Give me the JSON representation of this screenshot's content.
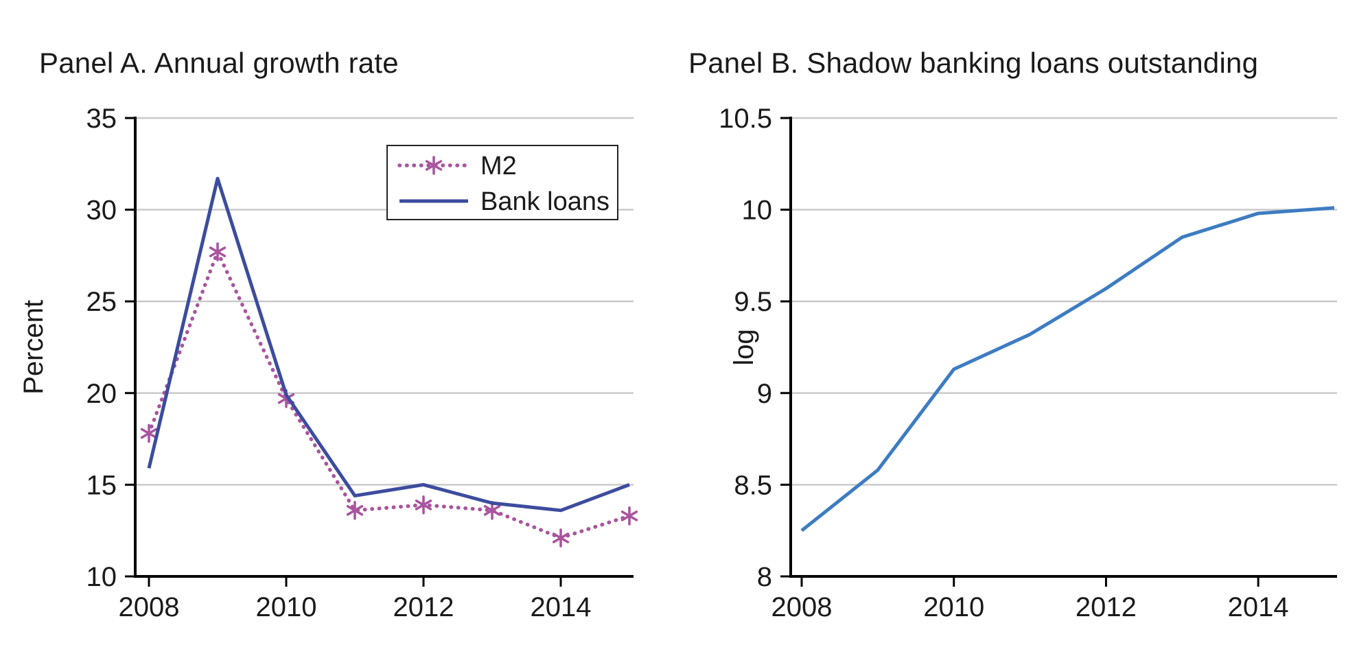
{
  "figure": {
    "background": "#ffffff",
    "grid_color": "#c8c8c8",
    "axis_color": "#000000",
    "text_color": "#1a1a1a",
    "legend_border_color": "#222222"
  },
  "chart_data": [
    {
      "type": "line",
      "title": "Panel A. Annual growth rate",
      "xlabel": "",
      "ylabel": "Percent",
      "x": [
        2008,
        2009,
        2010,
        2011,
        2012,
        2013,
        2014,
        2015
      ],
      "xlim": [
        2008,
        2015
      ],
      "ylim": [
        10,
        35
      ],
      "xticks": [
        2008,
        2010,
        2012,
        2014
      ],
      "xtick_labels": [
        "2008",
        "2010",
        "2012",
        "2014"
      ],
      "yticks": [
        10,
        15,
        20,
        25,
        30,
        35
      ],
      "ytick_labels": [
        "10",
        "15",
        "20",
        "25",
        "30",
        "35"
      ],
      "grid": true,
      "legend_position": "upper-center-inside",
      "series": [
        {
          "name": "M2",
          "color": "#a8559e",
          "line_style": "dotted",
          "marker": "asterisk",
          "values": [
            17.8,
            27.7,
            19.7,
            13.6,
            13.9,
            13.6,
            12.1,
            13.3
          ]
        },
        {
          "name": "Bank loans",
          "color": "#3c4c9e",
          "line_style": "solid",
          "marker": "none",
          "values": [
            15.9,
            31.7,
            19.9,
            14.4,
            15.0,
            14.0,
            13.6,
            15.0
          ]
        }
      ]
    },
    {
      "type": "line",
      "title": "Panel B. Shadow banking loans outstanding",
      "xlabel": "",
      "ylabel": "log",
      "x": [
        2008,
        2009,
        2010,
        2011,
        2012,
        2013,
        2014,
        2015
      ],
      "xlim": [
        2008,
        2015
      ],
      "ylim": [
        8,
        10.5
      ],
      "xticks": [
        2008,
        2010,
        2012,
        2014
      ],
      "xtick_labels": [
        "2008",
        "2010",
        "2012",
        "2014"
      ],
      "yticks": [
        8,
        8.5,
        9,
        9.5,
        10,
        10.5
      ],
      "ytick_labels": [
        "8",
        "8.5",
        "9",
        "9.5",
        "10",
        "10.5"
      ],
      "grid": true,
      "legend_position": "none",
      "series": [
        {
          "name": "Shadow banking loans",
          "color": "#3d7cc1",
          "line_style": "solid",
          "marker": "none",
          "values": [
            8.25,
            8.58,
            9.13,
            9.32,
            9.57,
            9.85,
            9.98,
            10.01
          ]
        }
      ]
    }
  ]
}
